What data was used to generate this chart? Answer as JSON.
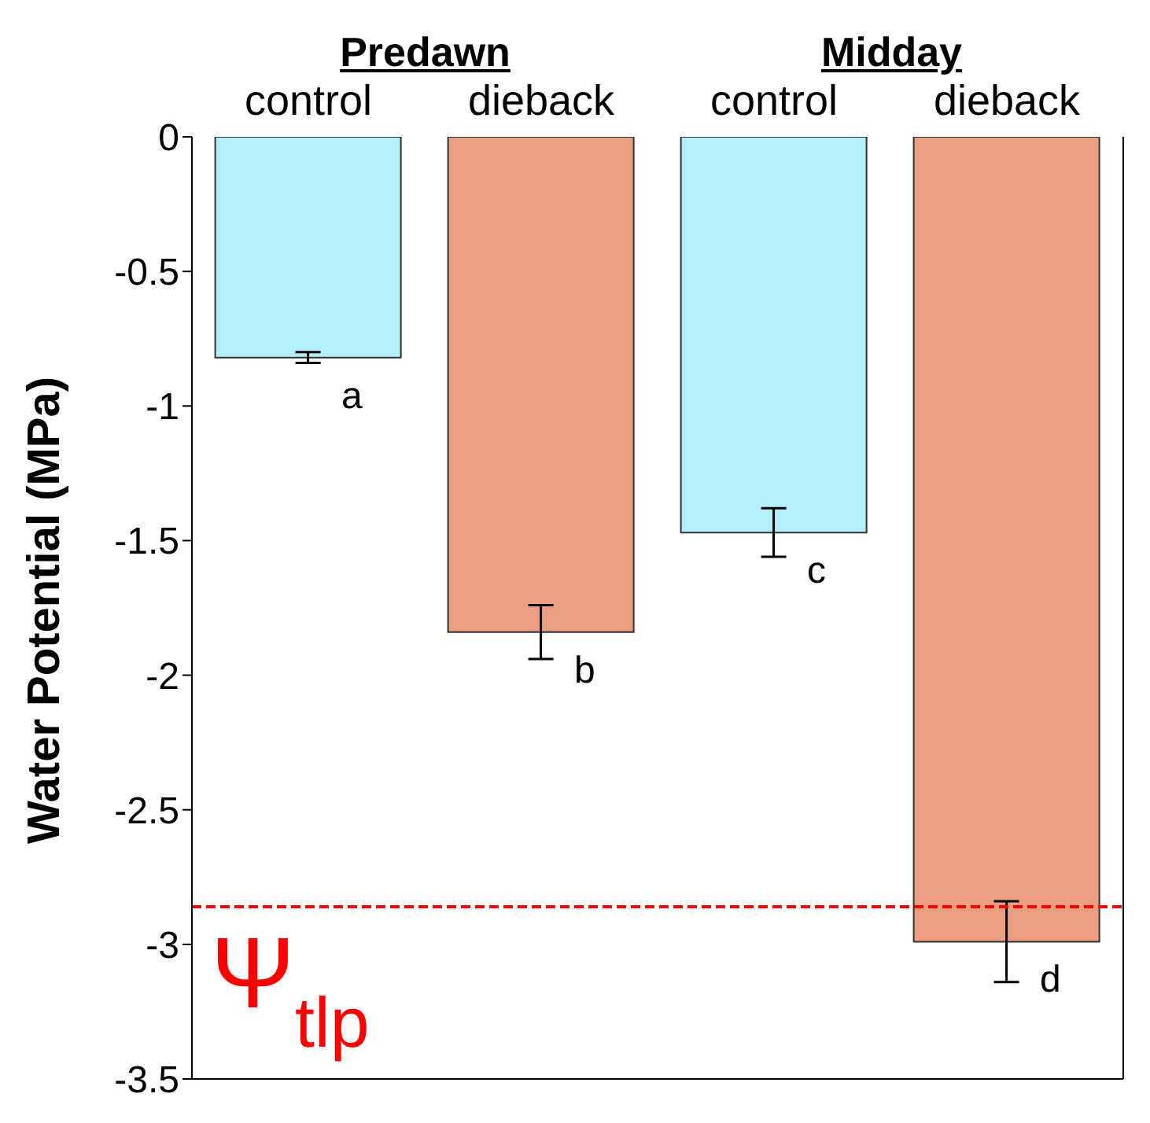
{
  "chart_data": {
    "type": "bar",
    "ylabel": "Water Potential (MPa)",
    "categories": [
      "control",
      "dieback",
      "control",
      "dieback"
    ],
    "values": [
      -0.82,
      -1.84,
      -1.47,
      -2.99
    ],
    "colors": [
      "#b3f0fb",
      "#eb9e80",
      "#b3f0fb",
      "#eb9e80"
    ],
    "errors": [
      0.02,
      0.1,
      0.09,
      0.15
    ],
    "value_labels": [
      "a",
      "b",
      "c",
      "d"
    ],
    "ylim": [
      -3.5,
      0
    ],
    "yticks": [
      -3.5,
      -3,
      -2.5,
      -2,
      -1.5,
      -1,
      -0.5,
      0
    ],
    "ref_lines": [
      {
        "axis": "y",
        "value": -2.86,
        "label": "Ψ$_{tlp}$",
        "color": "#ff0000",
        "line_style": "dashed"
      }
    ],
    "annotations": [
      "Predawn",
      "Midday"
    ],
    "grid": false,
    "legend": false
  }
}
